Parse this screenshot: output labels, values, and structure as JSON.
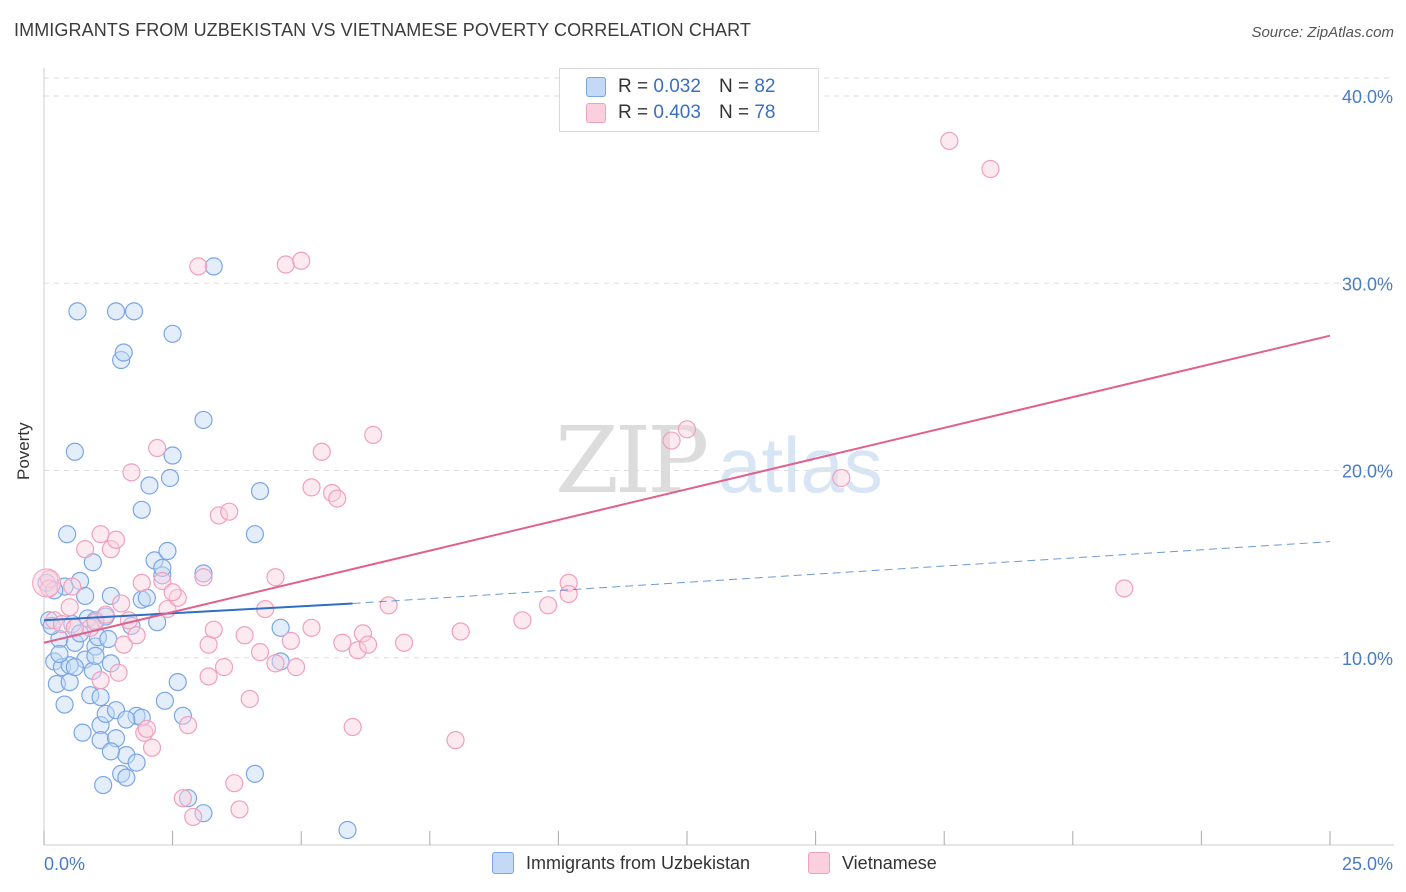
{
  "chart_data": {
    "type": "scatter",
    "title": "IMMIGRANTS FROM UZBEKISTAN VS VIETNAMESE POVERTY CORRELATION CHART",
    "source": "Source: ZipAtlas.com",
    "xlabel": "",
    "ylabel": "Poverty",
    "xlim": [
      0,
      25
    ],
    "ylim": [
      0,
      40
    ],
    "x_tick_labels": [
      "0.0%",
      "25.0%"
    ],
    "y_ticks": [
      10,
      20,
      30,
      40
    ],
    "y_tick_labels": [
      "10.0%",
      "20.0%",
      "30.0%",
      "40.0%"
    ],
    "watermark": "ZIPatlas",
    "legend": {
      "rows": [
        {
          "r_label": "R =",
          "r_value": "0.032",
          "n_label": "N =",
          "n_value": "82"
        },
        {
          "r_label": "R =",
          "r_value": "0.403",
          "n_label": "N =",
          "n_value": "78"
        }
      ]
    },
    "series": [
      {
        "name": "Immigrants from Uzbekistan",
        "color": "#7aa6e6",
        "line_color": "#2f6fc2",
        "trend": {
          "x0": 0,
          "y0": 12.0,
          "x1": 6.0,
          "y1": 12.9,
          "dash_x1": 25,
          "dash_y1": 16.2
        },
        "points": [
          [
            0.05,
            14.0
          ],
          [
            0.1,
            12.0
          ],
          [
            0.2,
            9.8
          ],
          [
            0.25,
            8.6
          ],
          [
            0.3,
            11.0
          ],
          [
            0.35,
            9.5
          ],
          [
            0.4,
            13.8
          ],
          [
            0.45,
            16.6
          ],
          [
            0.5,
            9.6
          ],
          [
            0.55,
            11.8
          ],
          [
            0.6,
            10.8
          ],
          [
            0.6,
            21.0
          ],
          [
            0.65,
            28.5
          ],
          [
            0.7,
            14.1
          ],
          [
            0.75,
            6.0
          ],
          [
            0.8,
            9.9
          ],
          [
            0.85,
            12.1
          ],
          [
            0.9,
            8.0
          ],
          [
            0.95,
            15.1
          ],
          [
            0.95,
            9.3
          ],
          [
            1.0,
            10.6
          ],
          [
            1.05,
            11.1
          ],
          [
            1.1,
            6.4
          ],
          [
            1.1,
            5.6
          ],
          [
            1.15,
            3.2
          ],
          [
            1.2,
            7.0
          ],
          [
            1.25,
            11.0
          ],
          [
            1.3,
            9.7
          ],
          [
            1.3,
            13.3
          ],
          [
            1.4,
            7.2
          ],
          [
            1.4,
            5.7
          ],
          [
            1.4,
            28.5
          ],
          [
            1.5,
            3.8
          ],
          [
            1.5,
            25.9
          ],
          [
            1.55,
            26.3
          ],
          [
            1.6,
            4.8
          ],
          [
            1.6,
            3.6
          ],
          [
            1.7,
            11.7
          ],
          [
            1.75,
            28.5
          ],
          [
            1.8,
            6.9
          ],
          [
            1.9,
            13.1
          ],
          [
            1.9,
            6.8
          ],
          [
            1.9,
            17.9
          ],
          [
            2.0,
            13.2
          ],
          [
            2.05,
            19.2
          ],
          [
            2.15,
            15.2
          ],
          [
            2.2,
            11.9
          ],
          [
            2.3,
            14.4
          ],
          [
            2.3,
            14.8
          ],
          [
            2.35,
            7.7
          ],
          [
            2.4,
            15.7
          ],
          [
            2.45,
            19.6
          ],
          [
            2.5,
            27.3
          ],
          [
            2.5,
            20.8
          ],
          [
            2.6,
            8.7
          ],
          [
            2.7,
            6.9
          ],
          [
            2.8,
            2.5
          ],
          [
            3.1,
            22.7
          ],
          [
            3.1,
            14.5
          ],
          [
            3.1,
            1.7
          ],
          [
            3.3,
            30.9
          ],
          [
            4.1,
            16.6
          ],
          [
            4.1,
            3.8
          ],
          [
            4.2,
            18.9
          ],
          [
            4.6,
            9.8
          ],
          [
            4.6,
            11.6
          ],
          [
            5.9,
            0.8
          ],
          [
            0.15,
            11.7
          ],
          [
            0.3,
            10.2
          ],
          [
            0.5,
            8.7
          ],
          [
            0.6,
            9.5
          ],
          [
            0.8,
            13.3
          ],
          [
            1.0,
            12.0
          ],
          [
            1.0,
            10.1
          ],
          [
            1.1,
            7.9
          ],
          [
            1.2,
            12.2
          ],
          [
            1.3,
            5.0
          ],
          [
            1.6,
            6.7
          ],
          [
            0.2,
            13.6
          ],
          [
            0.7,
            11.3
          ],
          [
            0.4,
            7.5
          ],
          [
            1.8,
            4.4
          ]
        ]
      },
      {
        "name": "Vietnamese",
        "color": "#f0a0bc",
        "line_color": "#e0608e",
        "trend": {
          "x0": 0,
          "y0": 10.8,
          "x1": 25,
          "y1": 27.2
        },
        "points": [
          [
            0.1,
            14.2
          ],
          [
            0.2,
            12.0
          ],
          [
            0.35,
            11.8
          ],
          [
            0.5,
            12.7
          ],
          [
            0.55,
            13.8
          ],
          [
            0.8,
            15.8
          ],
          [
            0.9,
            11.6
          ],
          [
            1.0,
            11.9
          ],
          [
            1.1,
            16.6
          ],
          [
            1.2,
            12.3
          ],
          [
            1.3,
            15.8
          ],
          [
            1.4,
            16.3
          ],
          [
            1.45,
            9.2
          ],
          [
            1.55,
            10.7
          ],
          [
            1.65,
            12.0
          ],
          [
            1.7,
            19.9
          ],
          [
            1.8,
            11.2
          ],
          [
            1.9,
            14.0
          ],
          [
            1.95,
            6.0
          ],
          [
            2.0,
            6.2
          ],
          [
            2.1,
            5.2
          ],
          [
            2.2,
            21.2
          ],
          [
            2.3,
            14.1
          ],
          [
            2.4,
            12.6
          ],
          [
            2.6,
            13.2
          ],
          [
            2.7,
            2.5
          ],
          [
            2.8,
            6.4
          ],
          [
            2.9,
            1.5
          ],
          [
            3.0,
            30.9
          ],
          [
            3.1,
            14.3
          ],
          [
            3.2,
            9.0
          ],
          [
            3.2,
            10.7
          ],
          [
            3.3,
            11.5
          ],
          [
            3.4,
            17.6
          ],
          [
            3.5,
            9.5
          ],
          [
            3.6,
            17.8
          ],
          [
            3.7,
            3.3
          ],
          [
            3.8,
            1.9
          ],
          [
            3.9,
            11.2
          ],
          [
            4.0,
            7.8
          ],
          [
            4.2,
            10.3
          ],
          [
            4.3,
            12.6
          ],
          [
            4.5,
            14.3
          ],
          [
            4.5,
            9.7
          ],
          [
            4.7,
            31.0
          ],
          [
            4.8,
            10.9
          ],
          [
            4.9,
            9.5
          ],
          [
            5.0,
            31.2
          ],
          [
            5.2,
            11.6
          ],
          [
            5.2,
            19.1
          ],
          [
            5.4,
            21.0
          ],
          [
            5.6,
            18.8
          ],
          [
            5.7,
            18.5
          ],
          [
            5.8,
            10.8
          ],
          [
            6.0,
            6.3
          ],
          [
            6.1,
            10.4
          ],
          [
            6.2,
            11.3
          ],
          [
            6.3,
            10.7
          ],
          [
            6.4,
            21.9
          ],
          [
            6.7,
            12.8
          ],
          [
            7.0,
            10.8
          ],
          [
            8.0,
            5.6
          ],
          [
            8.1,
            11.4
          ],
          [
            9.3,
            12.0
          ],
          [
            9.8,
            12.8
          ],
          [
            10.2,
            14.0
          ],
          [
            10.2,
            13.4
          ],
          [
            12.2,
            21.6
          ],
          [
            12.5,
            22.2
          ],
          [
            15.5,
            19.6
          ],
          [
            17.6,
            37.6
          ],
          [
            18.4,
            36.1
          ],
          [
            21.0,
            13.7
          ],
          [
            0.1,
            13.7
          ],
          [
            0.6,
            11.6
          ],
          [
            1.5,
            12.9
          ],
          [
            1.1,
            8.8
          ],
          [
            2.5,
            13.5
          ]
        ]
      }
    ]
  },
  "bottom_legend": {
    "items": [
      "Immigrants from Uzbekistan",
      "Vietnamese"
    ]
  }
}
